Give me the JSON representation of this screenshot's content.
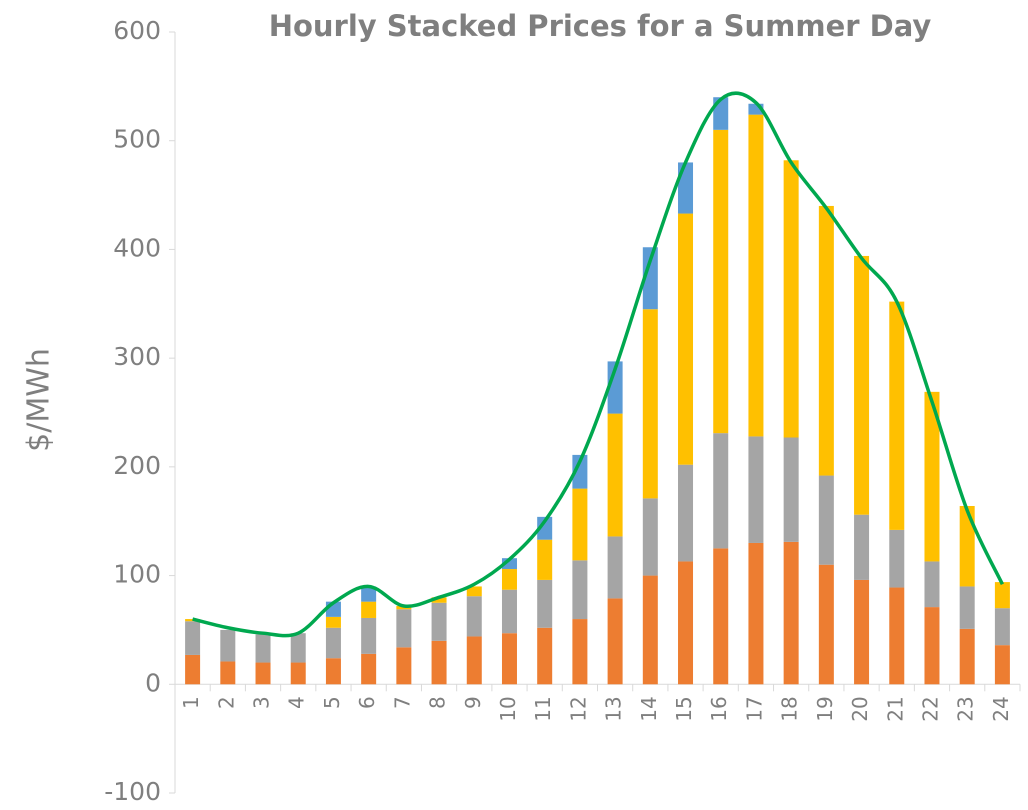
{
  "chart_data": {
    "type": "bar",
    "stacked": true,
    "title": "Hourly Stacked Prices for a Summer Day",
    "y_label": "$/MWh",
    "categories": [
      "1",
      "2",
      "3",
      "4",
      "5",
      "6",
      "7",
      "8",
      "9",
      "10",
      "11",
      "12",
      "13",
      "14",
      "15",
      "16",
      "17",
      "18",
      "19",
      "20",
      "21",
      "22",
      "23",
      "24"
    ],
    "series": [
      {
        "color": "#ed7d31",
        "values": [
          27,
          21,
          20,
          20,
          24,
          28,
          34,
          40,
          44,
          47,
          52,
          60,
          79,
          100,
          113,
          125,
          130,
          131,
          110,
          96,
          89,
          71,
          51,
          36
        ]
      },
      {
        "color": "#a5a5a5",
        "values": [
          31,
          29,
          26,
          27,
          28,
          33,
          35,
          35,
          37,
          40,
          44,
          54,
          57,
          71,
          89,
          106,
          98,
          96,
          82,
          60,
          53,
          42,
          39,
          34
        ]
      },
      {
        "color": "#ffc000",
        "values": [
          2,
          0,
          0,
          0,
          10,
          15,
          3,
          5,
          9,
          19,
          37,
          66,
          113,
          174,
          231,
          279,
          296,
          255,
          248,
          238,
          210,
          156,
          74,
          24
        ]
      },
      {
        "color": "#5b9bd5",
        "values": [
          0,
          0,
          0,
          0,
          14,
          14,
          0,
          0,
          0,
          10,
          21,
          31,
          48,
          57,
          47,
          30,
          10,
          0,
          0,
          0,
          0,
          0,
          0,
          0
        ]
      },
      {
        "type": "line",
        "color": "#00a84f",
        "values": [
          60,
          52,
          47,
          47,
          75,
          90,
          72,
          80,
          92,
          115,
          150,
          205,
          290,
          390,
          480,
          538,
          535,
          480,
          438,
          392,
          352,
          260,
          160,
          92
        ]
      }
    ],
    "ylim": [
      -100,
      600
    ],
    "yticks": [
      -100,
      0,
      100,
      200,
      300,
      400,
      500,
      600
    ]
  }
}
